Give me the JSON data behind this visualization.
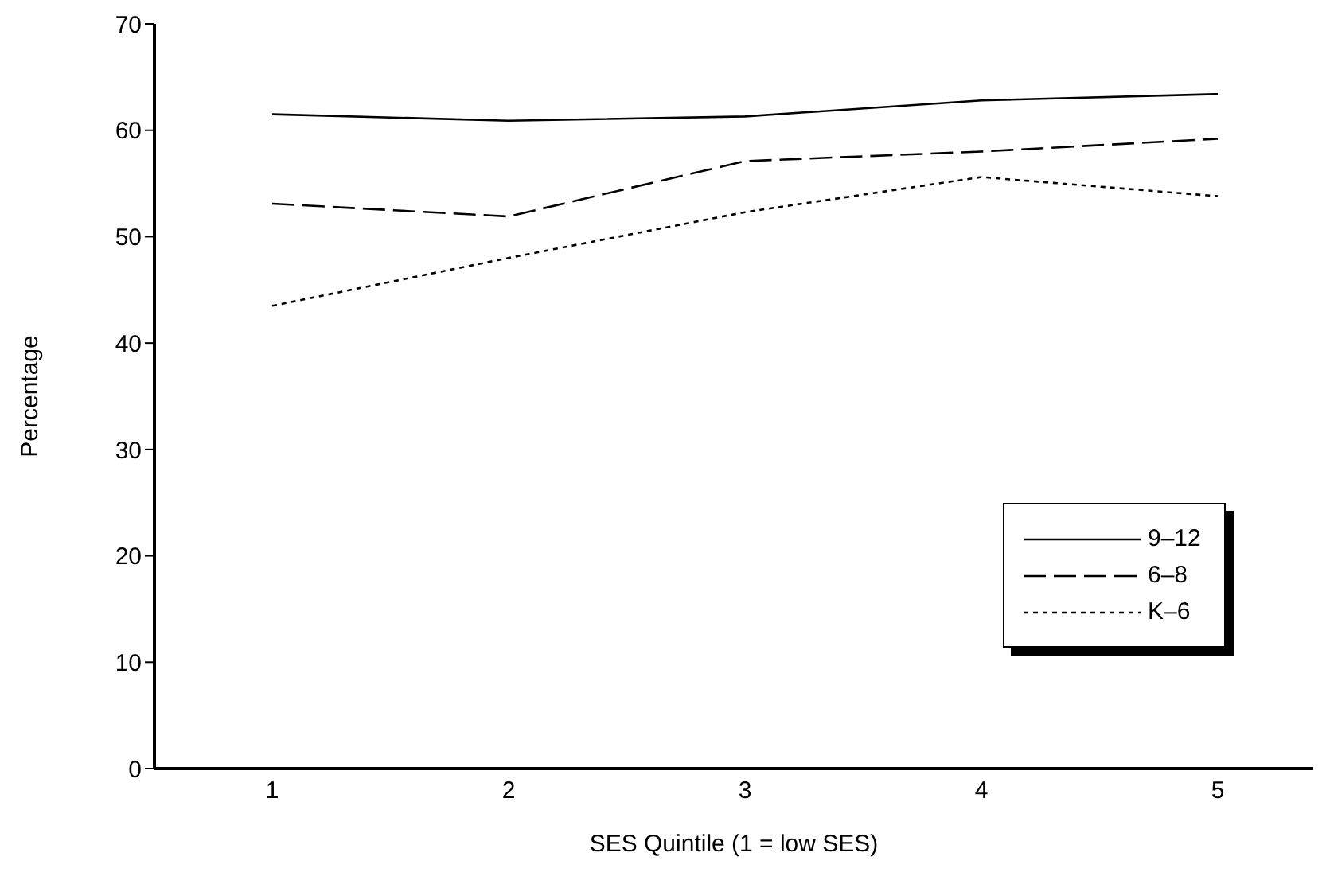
{
  "chart_data": {
    "type": "line",
    "xlabel": "SES Quintile (1 = low SES)",
    "ylabel": "Percentage",
    "categories": [
      "1",
      "2",
      "3",
      "4",
      "5"
    ],
    "ylim": [
      0,
      70
    ],
    "yticks": [
      0,
      10,
      20,
      30,
      40,
      50,
      60,
      70
    ],
    "grid": false,
    "legend": "bottom right",
    "marker": "none",
    "series": [
      {
        "name": "9–12",
        "color": "#000000",
        "line_style": "solid",
        "values": [
          61.5,
          60.9,
          61.3,
          62.8,
          63.4
        ]
      },
      {
        "name": "6–8",
        "color": "#000000",
        "line_style": "dashed",
        "values": [
          53.1,
          51.9,
          57.1,
          58.0,
          59.2
        ]
      },
      {
        "name": "K–6",
        "color": "#000000",
        "line_style": "dotted",
        "values": [
          43.5,
          48.0,
          52.3,
          55.6,
          53.8
        ]
      }
    ]
  }
}
